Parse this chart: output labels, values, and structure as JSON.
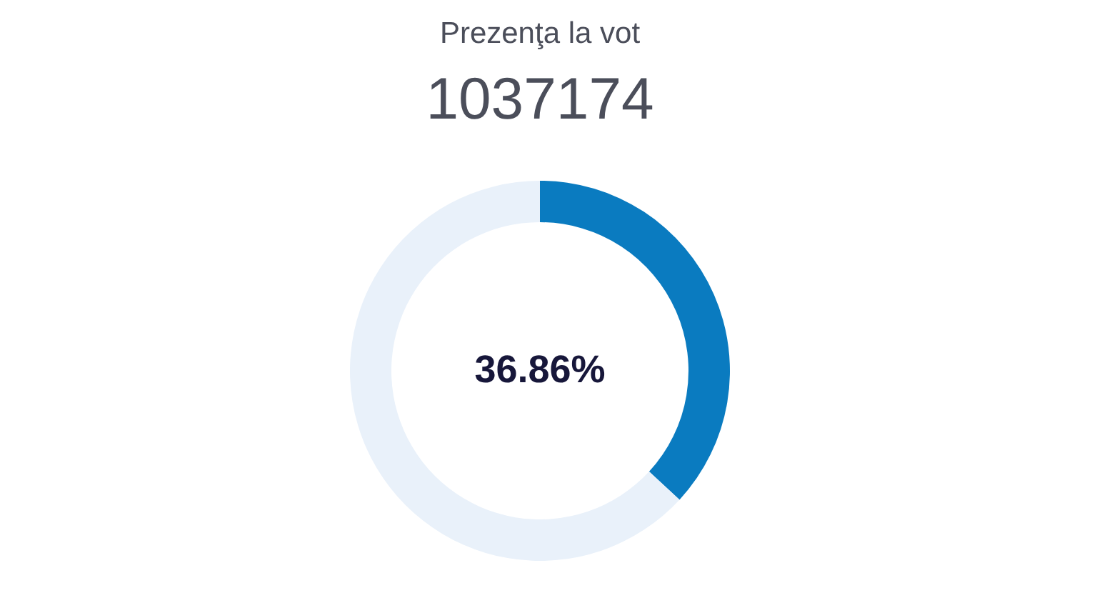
{
  "chart_data": {
    "type": "donut",
    "title": "Prezenţa la vot",
    "subtitle": "1037174",
    "categories": [
      null,
      null
    ],
    "values": [
      36.86,
      63.14
    ],
    "colors": [
      "#0a7bc0",
      "#e9f1fa"
    ],
    "value_labels": [
      "36.86%",
      null
    ]
  }
}
